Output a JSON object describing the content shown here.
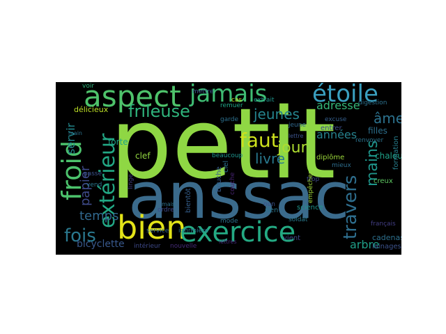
{
  "cloud": {
    "background": "#000000",
    "words": [
      {
        "text": "petit",
        "color": "#8fd744"
      },
      {
        "text": "anssac",
        "color": "#3b6b8c"
      },
      {
        "text": "aspect",
        "color": "#4ec36b"
      },
      {
        "text": "jamais",
        "color": "#3fbc73"
      },
      {
        "text": "étoile",
        "color": "#3a9fbf"
      },
      {
        "text": "froid",
        "color": "#4cc26c"
      },
      {
        "text": "bien",
        "color": "#e3e418"
      },
      {
        "text": "exercice",
        "color": "#24aa83"
      },
      {
        "text": "extérieur",
        "color": "#22a784"
      },
      {
        "text": "frileuse",
        "color": "#2fb47c"
      },
      {
        "text": "fois",
        "color": "#2a788e"
      },
      {
        "text": "faut",
        "color": "#cde11d"
      },
      {
        "text": "jeunes",
        "color": "#25858e"
      },
      {
        "text": "jour",
        "color": "#addc30"
      },
      {
        "text": "livre",
        "color": "#29798e"
      },
      {
        "text": "travers",
        "color": "#2e6e8e"
      },
      {
        "text": "mains",
        "color": "#1f958b"
      },
      {
        "text": "âme",
        "color": "#2c728e"
      },
      {
        "text": "papier",
        "color": "#3e4a89"
      },
      {
        "text": "temps",
        "color": "#31688e"
      },
      {
        "text": "servir",
        "color": "#23898e"
      },
      {
        "text": "années",
        "color": "#26828e"
      },
      {
        "text": "adresse",
        "color": "#35b779"
      },
      {
        "text": "arbre",
        "color": "#1f9f88"
      },
      {
        "text": "bicyclette",
        "color": "#38588c"
      },
      {
        "text": "filles",
        "color": "#2d708e"
      },
      {
        "text": "forte",
        "color": "#20a386"
      },
      {
        "text": "clef",
        "color": "#93d741"
      },
      {
        "text": "délicieux",
        "color": "#bddf26"
      },
      {
        "text": "chaleur",
        "color": "#1fa188"
      },
      {
        "text": "formation",
        "color": "#277f8e"
      },
      {
        "text": "cadenas",
        "color": "#2d708e"
      },
      {
        "text": "lainages",
        "color": "#3b528b"
      },
      {
        "text": "diplôme",
        "color": "#9dd93b"
      },
      {
        "text": "entrer",
        "color": "#3e4c8a"
      },
      {
        "text": "rien",
        "color": "#2a768e"
      },
      {
        "text": "science",
        "color": "#1f958b"
      },
      {
        "text": "français",
        "color": "#433e85"
      },
      {
        "text": "vient",
        "color": "#3f4889"
      },
      {
        "text": "soldat",
        "color": "#297b8e"
      },
      {
        "text": "non",
        "color": "#3b528b"
      },
      {
        "text": "bouche",
        "color": "#365c8d"
      },
      {
        "text": "couche",
        "color": "#482475"
      },
      {
        "text": "mode",
        "color": "#2c738e"
      },
      {
        "text": "bientôt",
        "color": "#355f8d"
      },
      {
        "text": "intérieur",
        "color": "#3e4989"
      },
      {
        "text": "nouvelle",
        "color": "#472c7a"
      },
      {
        "text": "service",
        "color": "#31668e"
      },
      {
        "text": "infirmière",
        "color": "#2b758e"
      },
      {
        "text": "cure",
        "color": "#2c728e"
      },
      {
        "text": "ordre",
        "color": "#3e4989"
      },
      {
        "text": "passe",
        "color": "#3b528b"
      },
      {
        "text": "linge",
        "color": "#433d84"
      },
      {
        "text": "vend",
        "color": "#2a768e"
      },
      {
        "text": "mettre",
        "color": "#3b528b"
      },
      {
        "text": "voir",
        "color": "#2fb47c"
      },
      {
        "text": "remuer",
        "color": "#20a386"
      },
      {
        "text": "cas",
        "color": "#c2df23"
      },
      {
        "text": "extrait",
        "color": "#1f948c"
      },
      {
        "text": "garde",
        "color": "#2d708e"
      },
      {
        "text": "excuse",
        "color": "#355f8d"
      },
      {
        "text": "digestion",
        "color": "#2c728e"
      },
      {
        "text": "jeune",
        "color": "#31688e"
      },
      {
        "text": "lettre",
        "color": "#3b528b"
      },
      {
        "text": "renvoyer",
        "color": "#2c738e"
      },
      {
        "text": "mieux",
        "color": "#2e6e8e"
      },
      {
        "text": "creux",
        "color": "#5ec962"
      },
      {
        "text": "trop",
        "color": "#3e4a89"
      },
      {
        "text": "empêcher",
        "color": "#a0da39"
      },
      {
        "text": "beaucoup",
        "color": "#1f948c"
      },
      {
        "text": "ciel",
        "color": "#2d708e"
      },
      {
        "text": "mais",
        "color": "#2c728e"
      },
      {
        "text": "main",
        "color": "#2c728e"
      },
      {
        "text": "lettres",
        "color": "#482979"
      }
    ]
  }
}
